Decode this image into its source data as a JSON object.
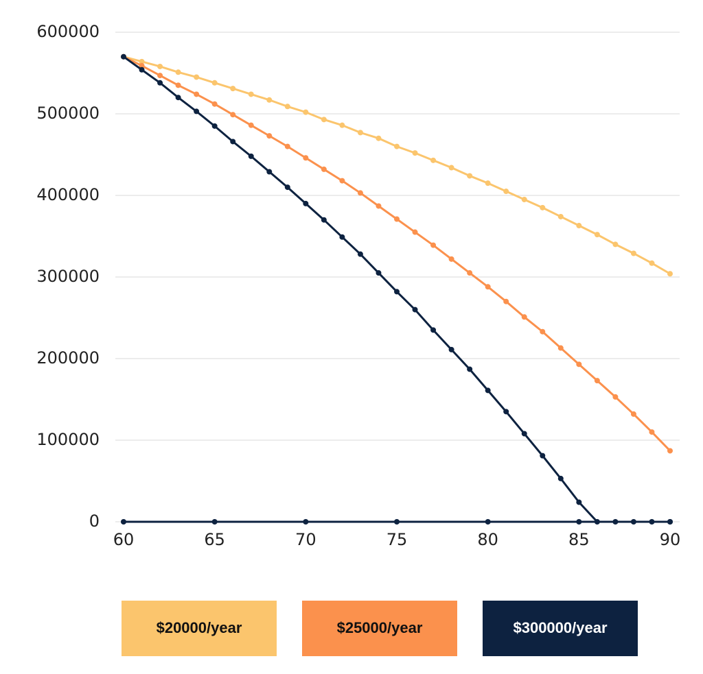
{
  "chart_data": {
    "type": "line",
    "x": [
      60,
      61,
      62,
      63,
      64,
      65,
      66,
      67,
      68,
      69,
      70,
      71,
      72,
      73,
      74,
      75,
      76,
      77,
      78,
      79,
      80,
      81,
      82,
      83,
      84,
      85,
      86,
      87,
      88,
      89,
      90
    ],
    "series": [
      {
        "name": "$20000/year",
        "color": "#fbc56d",
        "values": [
          570000,
          564000,
          558000,
          551000,
          545000,
          538000,
          531000,
          524000,
          517000,
          509000,
          502000,
          493000,
          486000,
          477000,
          470000,
          460000,
          452000,
          443000,
          434000,
          424000,
          415000,
          405000,
          395000,
          385000,
          374000,
          363000,
          352000,
          340000,
          329000,
          317000,
          304000
        ]
      },
      {
        "name": "$25000/year",
        "color": "#fb914d",
        "values": [
          570000,
          559000,
          547000,
          535000,
          524000,
          512000,
          499000,
          486000,
          473000,
          460000,
          446000,
          432000,
          418000,
          403000,
          387000,
          371000,
          355000,
          339000,
          322000,
          305000,
          288000,
          270000,
          251000,
          233000,
          213000,
          193000,
          173000,
          153000,
          132000,
          110000,
          87000
        ]
      },
      {
        "name": "$300000/year",
        "color": "#0d2240",
        "values": [
          570000,
          554000,
          538000,
          520000,
          503000,
          485000,
          466000,
          448000,
          429000,
          410000,
          390000,
          370000,
          349000,
          328000,
          305000,
          282000,
          260000,
          235000,
          211000,
          187000,
          161000,
          135000,
          108000,
          81000,
          53000,
          24000,
          0,
          0,
          0,
          0,
          0
        ]
      }
    ],
    "xlim": [
      60,
      90
    ],
    "xticks": [
      60,
      65,
      70,
      75,
      80,
      85,
      90
    ],
    "ylim": [
      0,
      600000
    ],
    "yticks": [
      0,
      100000,
      200000,
      300000,
      400000,
      500000,
      600000
    ],
    "grid": true
  }
}
